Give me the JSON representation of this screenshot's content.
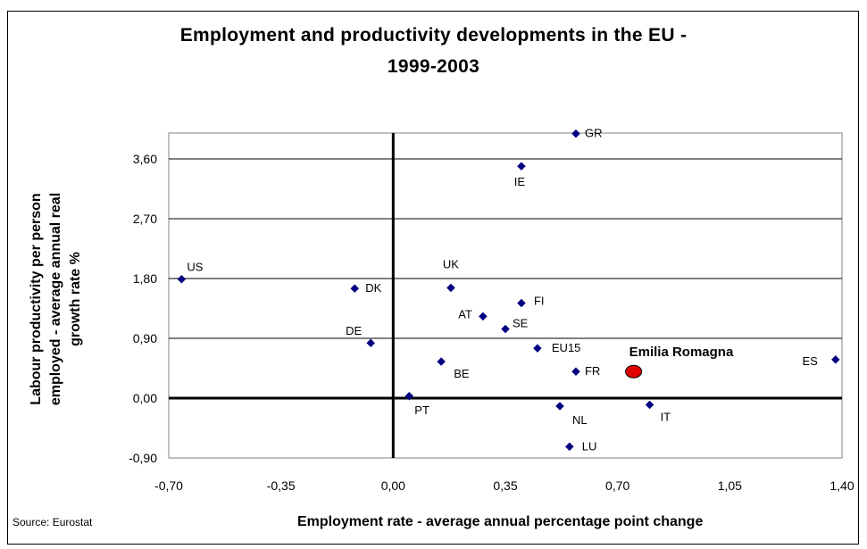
{
  "chart_data": {
    "type": "scatter",
    "title": "Employment and productivity developments in the EU -\n1999-2003",
    "xlabel": "Employment rate - average annual percentage point change",
    "ylabel": "Labour productivity per person\nemployed - average annual real\ngrowth rate %",
    "source": "Source: Eurostat",
    "xlim": [
      -0.7,
      1.4
    ],
    "ylim": [
      -0.9,
      4.05
    ],
    "x_ticks": [
      "-0,70",
      "-0,35",
      "0,00",
      "0,35",
      "0,70",
      "1,05",
      "1,40"
    ],
    "y_ticks": [
      "-0,90",
      "0,00",
      "0,90",
      "1,80",
      "2,70",
      "3,60"
    ],
    "grid": "horizontal",
    "points": [
      {
        "label": "GR",
        "x": 0.57,
        "y": 3.98
      },
      {
        "label": "IE",
        "x": 0.4,
        "y": 3.49
      },
      {
        "label": "US",
        "x": -0.66,
        "y": 1.79
      },
      {
        "label": "DK",
        "x": -0.12,
        "y": 1.65
      },
      {
        "label": "UK",
        "x": 0.18,
        "y": 1.66
      },
      {
        "label": "FI",
        "x": 0.4,
        "y": 1.43
      },
      {
        "label": "AT",
        "x": 0.28,
        "y": 1.23
      },
      {
        "label": "SE",
        "x": 0.35,
        "y": 1.04
      },
      {
        "label": "DE",
        "x": -0.07,
        "y": 0.83
      },
      {
        "label": "EU15",
        "x": 0.45,
        "y": 0.75
      },
      {
        "label": "BE",
        "x": 0.15,
        "y": 0.55
      },
      {
        "label": "FR",
        "x": 0.57,
        "y": 0.4
      },
      {
        "label": "ES",
        "x": 1.38,
        "y": 0.58
      },
      {
        "label": "PT",
        "x": 0.05,
        "y": 0.03
      },
      {
        "label": "NL",
        "x": 0.52,
        "y": -0.12
      },
      {
        "label": "IT",
        "x": 0.8,
        "y": -0.1
      },
      {
        "label": "LU",
        "x": 0.55,
        "y": -0.73
      }
    ],
    "highlight": {
      "label": "Emilia Romagna",
      "x": 0.75,
      "y": 0.4,
      "color": "#e00000"
    },
    "marker_color": "#000080"
  }
}
